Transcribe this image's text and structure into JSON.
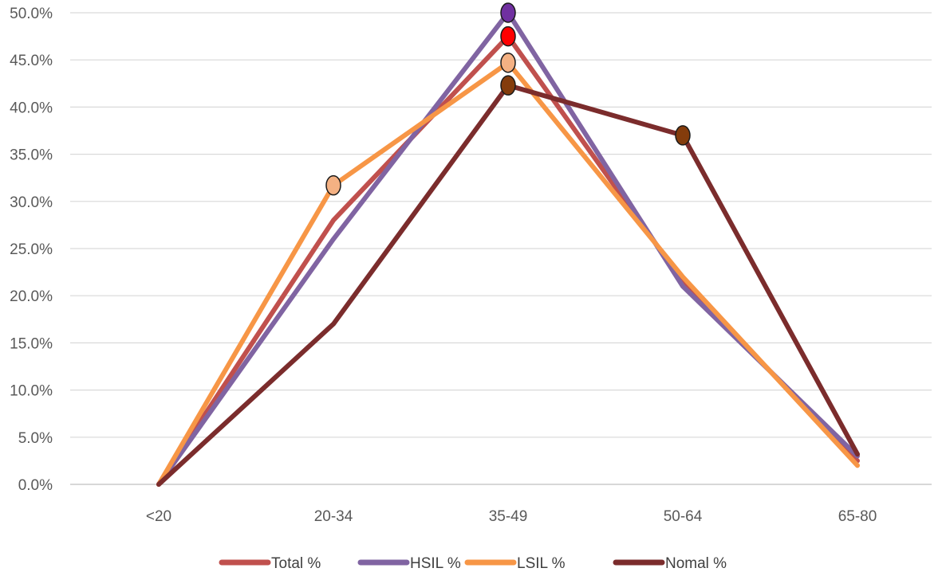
{
  "chart_data": {
    "type": "line",
    "title": "",
    "xlabel": "",
    "ylabel": "",
    "categories": [
      "<20",
      "20-34",
      "35-49",
      "50-64",
      "65-80"
    ],
    "ylim": [
      0,
      50
    ],
    "y_ticks": [
      0,
      5,
      10,
      15,
      20,
      25,
      30,
      35,
      40,
      45,
      50
    ],
    "y_tick_labels": [
      "0.0%",
      "5.0%",
      "10.0%",
      "15.0%",
      "20.0%",
      "25.0%",
      "30.0%",
      "35.0%",
      "40.0%",
      "45.0%",
      "50.0%"
    ],
    "grid": true,
    "legend_position": "bottom",
    "series": [
      {
        "name": "Total  %",
        "color": "#c0504d",
        "values": [
          0,
          28.0,
          47.5,
          21.5,
          2.5
        ],
        "highlight_points": [
          2
        ],
        "marker_color": "#ff0000"
      },
      {
        "name": "HSIL %",
        "color": "#8064a2",
        "values": [
          0,
          26.0,
          50.0,
          21.0,
          3.0
        ],
        "highlight_points": [
          2
        ],
        "marker_color": "#7030a0"
      },
      {
        "name": "LSIL %",
        "color": "#f79646",
        "values": [
          0,
          31.7,
          44.7,
          22.0,
          2.0
        ],
        "highlight_points": [
          1,
          2
        ],
        "marker_color": "#f4b183"
      },
      {
        "name": "Nomal %",
        "color": "#7b2c2c",
        "values": [
          0,
          17.0,
          42.3,
          37.0,
          3.2
        ],
        "highlight_points": [
          2,
          3
        ],
        "marker_color": "#843c0c"
      }
    ]
  }
}
